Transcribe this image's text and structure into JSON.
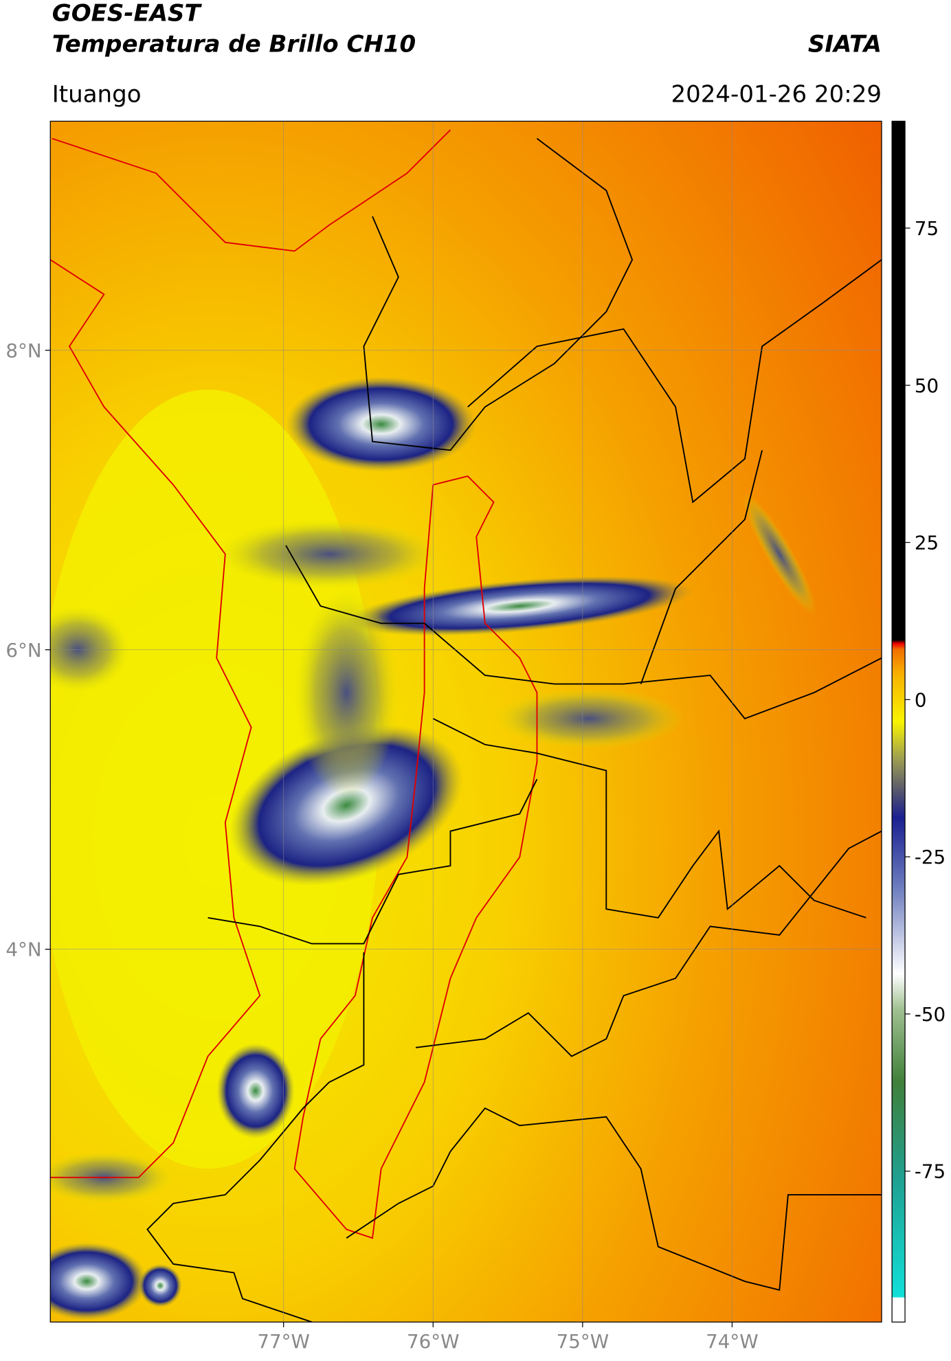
{
  "header": {
    "title": "GOES-EAST",
    "subtitle": "Temperatura de Brillo CH10",
    "source": "SIATA",
    "location": "Ituango",
    "datetime": "2024-01-26 20:29"
  },
  "map": {
    "type": "map",
    "xlim": [
      -78.56,
      -73.0
    ],
    "ylim": [
      1.51,
      9.53
    ],
    "xticks": [
      {
        "value": -77,
        "label": "77°W"
      },
      {
        "value": -76,
        "label": "76°W"
      },
      {
        "value": -75,
        "label": "75°W"
      },
      {
        "value": -74,
        "label": "74°W"
      }
    ],
    "yticks": [
      {
        "value": 8,
        "label": "8°N"
      },
      {
        "value": 6,
        "label": "6°N"
      },
      {
        "value": 4,
        "label": "4°N"
      }
    ],
    "grid": true
  },
  "colorbar": {
    "clim": [
      -99,
      92
    ],
    "ticks": [
      75,
      50,
      25,
      0,
      -25,
      -50,
      -75
    ]
  }
}
